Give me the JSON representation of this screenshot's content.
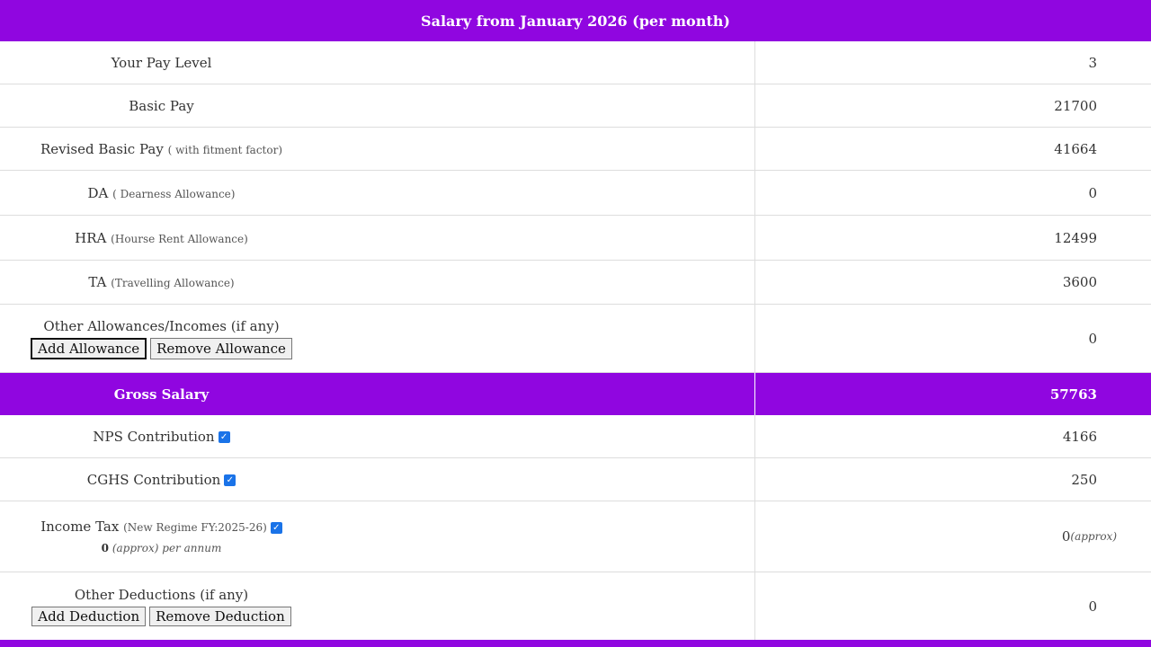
{
  "title": "Salary from January 2026 (per month)",
  "rows": [
    {
      "label": "Your Pay Level",
      "note": "",
      "value": "3"
    },
    {
      "label": "Basic Pay",
      "note": "",
      "value": "21700"
    },
    {
      "label": "Revised Basic Pay",
      "note": "( with fitment factor)",
      "value": "41664"
    },
    {
      "label": "DA",
      "note": "( Dearness Allowance)",
      "value": "0"
    },
    {
      "label": "HRA",
      "note": "(Hourse Rent Allowance)",
      "value": "12499"
    },
    {
      "label": "TA",
      "note": "(Travelling Allowance)",
      "value": "3600"
    }
  ],
  "other_allowances": {
    "label": "Other Allowances/Incomes (if any)",
    "add": "Add Allowance",
    "remove": "Remove Allowance",
    "value": "0"
  },
  "gross": {
    "label": "Gross Salary",
    "value": "57763"
  },
  "nps": {
    "label": "NPS Contribution",
    "value": "4166",
    "checked": true
  },
  "cghs": {
    "label": "CGHS Contribution",
    "value": "250",
    "checked": true
  },
  "income_tax": {
    "label": "Income Tax",
    "note": "(New Regime FY:2025-26)",
    "annual_value": "0",
    "annual_note": "(approx) per annum",
    "value": "0",
    "value_note": "(approx)",
    "checked": true
  },
  "other_deductions": {
    "label": "Other Deductions (if any)",
    "add": "Add Deduction",
    "remove": "Remove Deduction",
    "value": "0"
  },
  "colors": {
    "accent": "#9006e0",
    "checkbox": "#1a73e8"
  }
}
